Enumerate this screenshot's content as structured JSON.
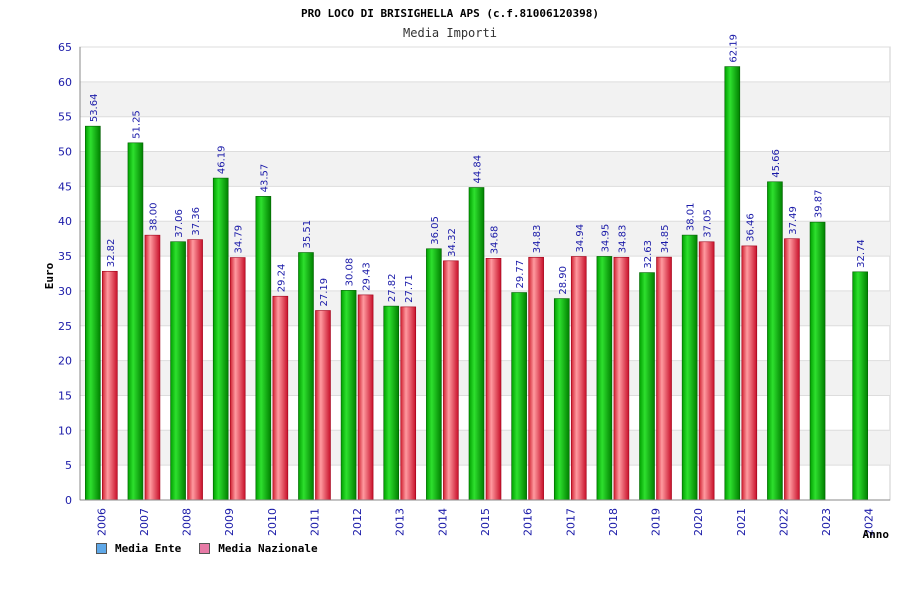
{
  "chart_data": {
    "type": "bar",
    "title": "PRO LOCO DI BRISIGHELLA APS (c.f.81006120398)",
    "subtitle": "Media Importi",
    "xlabel": "Anno",
    "ylabel": "Euro",
    "ylim": [
      0,
      65
    ],
    "ytick_step": 5,
    "grid": true,
    "legend": "bottom-left",
    "categories": [
      "2006",
      "2007",
      "2008",
      "2009",
      "2010",
      "2011",
      "2012",
      "2013",
      "2014",
      "2015",
      "2016",
      "2017",
      "2018",
      "2019",
      "2020",
      "2021",
      "2022",
      "2023",
      "2024"
    ],
    "series": [
      {
        "name": "Media Ente",
        "color": "#11c411",
        "legend_color": "#5fa8e8",
        "values": [
          53.64,
          51.25,
          37.06,
          46.19,
          43.57,
          35.51,
          30.08,
          27.82,
          36.05,
          44.84,
          29.77,
          28.9,
          34.95,
          32.63,
          38.01,
          62.19,
          45.66,
          39.87,
          32.74
        ]
      },
      {
        "name": "Media Nazionale",
        "color": "#e8424a",
        "legend_color": "#e77aa6",
        "values": [
          32.82,
          38.0,
          37.36,
          34.79,
          29.24,
          27.19,
          29.43,
          27.71,
          34.32,
          34.68,
          34.83,
          34.94,
          34.83,
          34.85,
          37.05,
          36.46,
          37.49,
          null,
          null
        ]
      }
    ]
  }
}
